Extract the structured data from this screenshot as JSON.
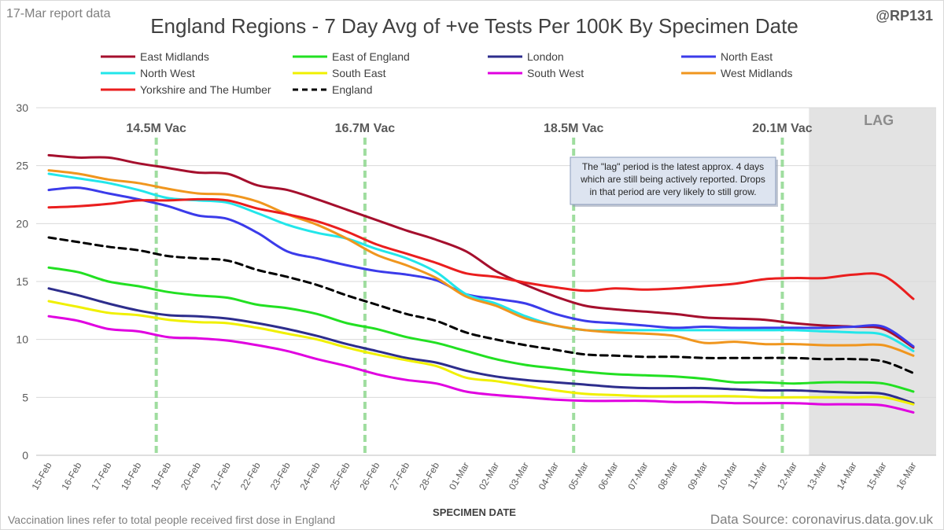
{
  "header": {
    "report_label": "17-Mar report data",
    "handle": "@RP131"
  },
  "footer": {
    "note": "Vaccination lines refer to total people received first dose in England",
    "source": "Data Source: coronavirus.data.gov.uk"
  },
  "chart_data": {
    "type": "line",
    "title": "England Regions - 7 Day Avg of +ve Tests Per 100K By Specimen Date",
    "xlabel": "SPECIMEN DATE",
    "ylabel": "",
    "ylim": [
      0,
      30
    ],
    "yticks": [
      0,
      5,
      10,
      15,
      20,
      25,
      30
    ],
    "grid": "horizontal",
    "legend_position": "top",
    "x": [
      "15-Feb",
      "16-Feb",
      "17-Feb",
      "18-Feb",
      "19-Feb",
      "20-Feb",
      "21-Feb",
      "22-Feb",
      "23-Feb",
      "24-Feb",
      "25-Feb",
      "26-Feb",
      "27-Feb",
      "28-Feb",
      "01-Mar",
      "02-Mar",
      "03-Mar",
      "04-Mar",
      "05-Mar",
      "06-Mar",
      "07-Mar",
      "08-Mar",
      "09-Mar",
      "10-Mar",
      "11-Mar",
      "12-Mar",
      "13-Mar",
      "14-Mar",
      "15-Mar",
      "16-Mar"
    ],
    "series": [
      {
        "name": "East Midlands",
        "color": "#a50f2d",
        "dash": false,
        "values": [
          25.9,
          25.7,
          25.7,
          25.2,
          24.8,
          24.4,
          24.3,
          23.3,
          22.9,
          22.1,
          21.2,
          20.3,
          19.4,
          18.6,
          17.6,
          15.9,
          14.7,
          13.7,
          12.9,
          12.6,
          12.4,
          12.2,
          11.9,
          11.8,
          11.7,
          11.4,
          11.2,
          11.1,
          10.9,
          9.3
        ]
      },
      {
        "name": "East of England",
        "color": "#22e022",
        "dash": false,
        "values": [
          16.2,
          15.8,
          15.0,
          14.6,
          14.1,
          13.8,
          13.6,
          13.0,
          12.7,
          12.2,
          11.4,
          10.9,
          10.2,
          9.7,
          9.0,
          8.3,
          7.8,
          7.5,
          7.2,
          7.0,
          6.9,
          6.8,
          6.6,
          6.3,
          6.3,
          6.2,
          6.3,
          6.3,
          6.2,
          5.5
        ]
      },
      {
        "name": "London",
        "color": "#2d2d8c",
        "dash": false,
        "values": [
          14.4,
          13.8,
          13.1,
          12.5,
          12.1,
          12.0,
          11.8,
          11.4,
          10.9,
          10.3,
          9.6,
          9.0,
          8.4,
          8.0,
          7.3,
          6.8,
          6.5,
          6.3,
          6.1,
          5.9,
          5.8,
          5.8,
          5.8,
          5.7,
          5.6,
          5.6,
          5.5,
          5.4,
          5.3,
          4.5
        ]
      },
      {
        "name": "North East",
        "color": "#3b3bea",
        "dash": false,
        "values": [
          22.9,
          23.1,
          22.6,
          22.1,
          21.5,
          20.7,
          20.4,
          19.2,
          17.6,
          17.0,
          16.4,
          15.9,
          15.6,
          15.1,
          13.9,
          13.5,
          13.1,
          12.2,
          11.6,
          11.4,
          11.2,
          11.0,
          11.1,
          11.0,
          11.0,
          11.0,
          11.0,
          11.1,
          11.1,
          9.4
        ]
      },
      {
        "name": "North West",
        "color": "#22e6ea",
        "dash": false,
        "values": [
          24.3,
          23.9,
          23.5,
          22.9,
          22.2,
          22.0,
          21.8,
          20.9,
          19.9,
          19.2,
          18.7,
          17.8,
          17.0,
          15.8,
          13.9,
          13.1,
          12.0,
          11.2,
          10.8,
          10.8,
          10.8,
          10.8,
          10.8,
          10.8,
          10.8,
          10.8,
          10.7,
          10.6,
          10.4,
          9.0
        ]
      },
      {
        "name": "South East",
        "color": "#f0f000",
        "dash": false,
        "values": [
          13.3,
          12.8,
          12.3,
          12.1,
          11.7,
          11.5,
          11.4,
          11.0,
          10.5,
          10.0,
          9.3,
          8.7,
          8.2,
          7.7,
          6.7,
          6.4,
          6.0,
          5.6,
          5.3,
          5.2,
          5.1,
          5.1,
          5.1,
          5.1,
          5.0,
          5.0,
          5.0,
          5.0,
          5.0,
          4.4
        ]
      },
      {
        "name": "South West",
        "color": "#e000e0",
        "dash": false,
        "values": [
          12.0,
          11.6,
          10.9,
          10.7,
          10.2,
          10.1,
          9.9,
          9.5,
          9.0,
          8.3,
          7.7,
          7.0,
          6.5,
          6.2,
          5.5,
          5.2,
          5.0,
          4.8,
          4.7,
          4.7,
          4.7,
          4.6,
          4.6,
          4.5,
          4.5,
          4.5,
          4.4,
          4.4,
          4.3,
          3.7
        ]
      },
      {
        "name": "West Midlands",
        "color": "#f0961e",
        "dash": false,
        "values": [
          24.6,
          24.3,
          23.8,
          23.5,
          23.0,
          22.6,
          22.5,
          21.9,
          20.8,
          19.9,
          18.7,
          17.3,
          16.4,
          15.3,
          13.7,
          12.9,
          11.8,
          11.2,
          10.8,
          10.6,
          10.5,
          10.3,
          9.7,
          9.8,
          9.6,
          9.6,
          9.5,
          9.5,
          9.5,
          8.6
        ]
      },
      {
        "name": "Yorkshire and The Humber",
        "color": "#ea1e1e",
        "dash": false,
        "values": [
          21.4,
          21.5,
          21.7,
          22.0,
          22.0,
          22.1,
          22.0,
          21.3,
          20.8,
          20.2,
          19.3,
          18.2,
          17.4,
          16.6,
          15.7,
          15.4,
          14.9,
          14.5,
          14.2,
          14.4,
          14.3,
          14.4,
          14.6,
          14.8,
          15.2,
          15.3,
          15.3,
          15.6,
          15.5,
          13.5
        ]
      },
      {
        "name": "England",
        "color": "#000000",
        "dash": true,
        "values": [
          18.8,
          18.4,
          18.0,
          17.7,
          17.2,
          17.0,
          16.8,
          16.0,
          15.4,
          14.7,
          13.8,
          13.0,
          12.2,
          11.6,
          10.6,
          10.0,
          9.5,
          9.1,
          8.7,
          8.6,
          8.5,
          8.5,
          8.4,
          8.4,
          8.4,
          8.4,
          8.3,
          8.3,
          8.1,
          7.1
        ]
      }
    ],
    "vaccination_lines": [
      {
        "label": "14.5M Vac",
        "x": "19-Feb"
      },
      {
        "label": "16.7M Vac",
        "x": "26-Feb"
      },
      {
        "label": "18.5M Vac",
        "x": "05-Mar"
      },
      {
        "label": "20.1M Vac",
        "x": "12-Mar"
      }
    ],
    "lag_region": {
      "label": "LAG",
      "from": "12-Mar",
      "to": "16-Mar"
    },
    "annotation": {
      "lines": [
        "The \"lag\" period is the latest approx. 4 days",
        "which are still being actively reported. Drops",
        "in that period are very likely to still grow."
      ]
    }
  }
}
